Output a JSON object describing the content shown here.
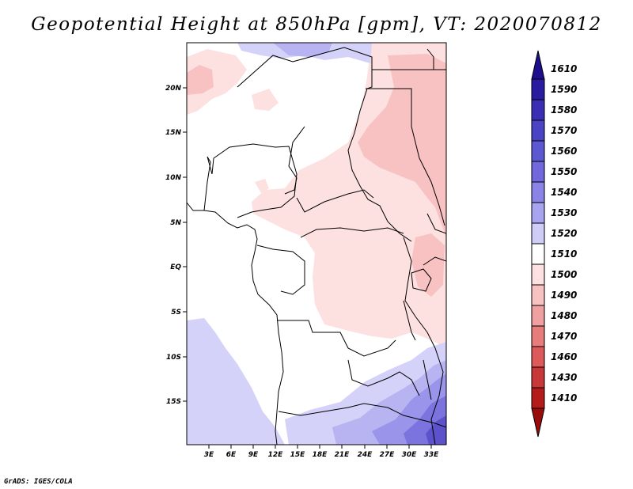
{
  "title": "Geopotential Height at 850hPa [gpm], VT: 2020070812",
  "credit": "GrADS: IGES/COLA",
  "map": {
    "lat_labels": [
      "20N",
      "15N",
      "10N",
      "5N",
      "EQ",
      "5S",
      "10S",
      "15S"
    ],
    "lon_labels": [
      "3E",
      "6E",
      "9E",
      "12E",
      "15E",
      "18E",
      "21E",
      "24E",
      "27E",
      "30E",
      "33E"
    ]
  },
  "colorbar": {
    "levels": [
      "1610",
      "1590",
      "1580",
      "1570",
      "1560",
      "1550",
      "1540",
      "1530",
      "1520",
      "1510",
      "1500",
      "1490",
      "1480",
      "1470",
      "1460",
      "1430",
      "1410"
    ],
    "colors": [
      "#1c0e8c",
      "#2a1ca0",
      "#3a2fb4",
      "#4a44c4",
      "#5c58d2",
      "#7068dc",
      "#8a84e6",
      "#a8a4f0",
      "#cfcdf8",
      "#ffffff",
      "#fde0e0",
      "#f8c2c2",
      "#f0a0a0",
      "#e67c7c",
      "#dc5a5a",
      "#c83838",
      "#b41c1c",
      "#9a0c0c"
    ]
  }
}
